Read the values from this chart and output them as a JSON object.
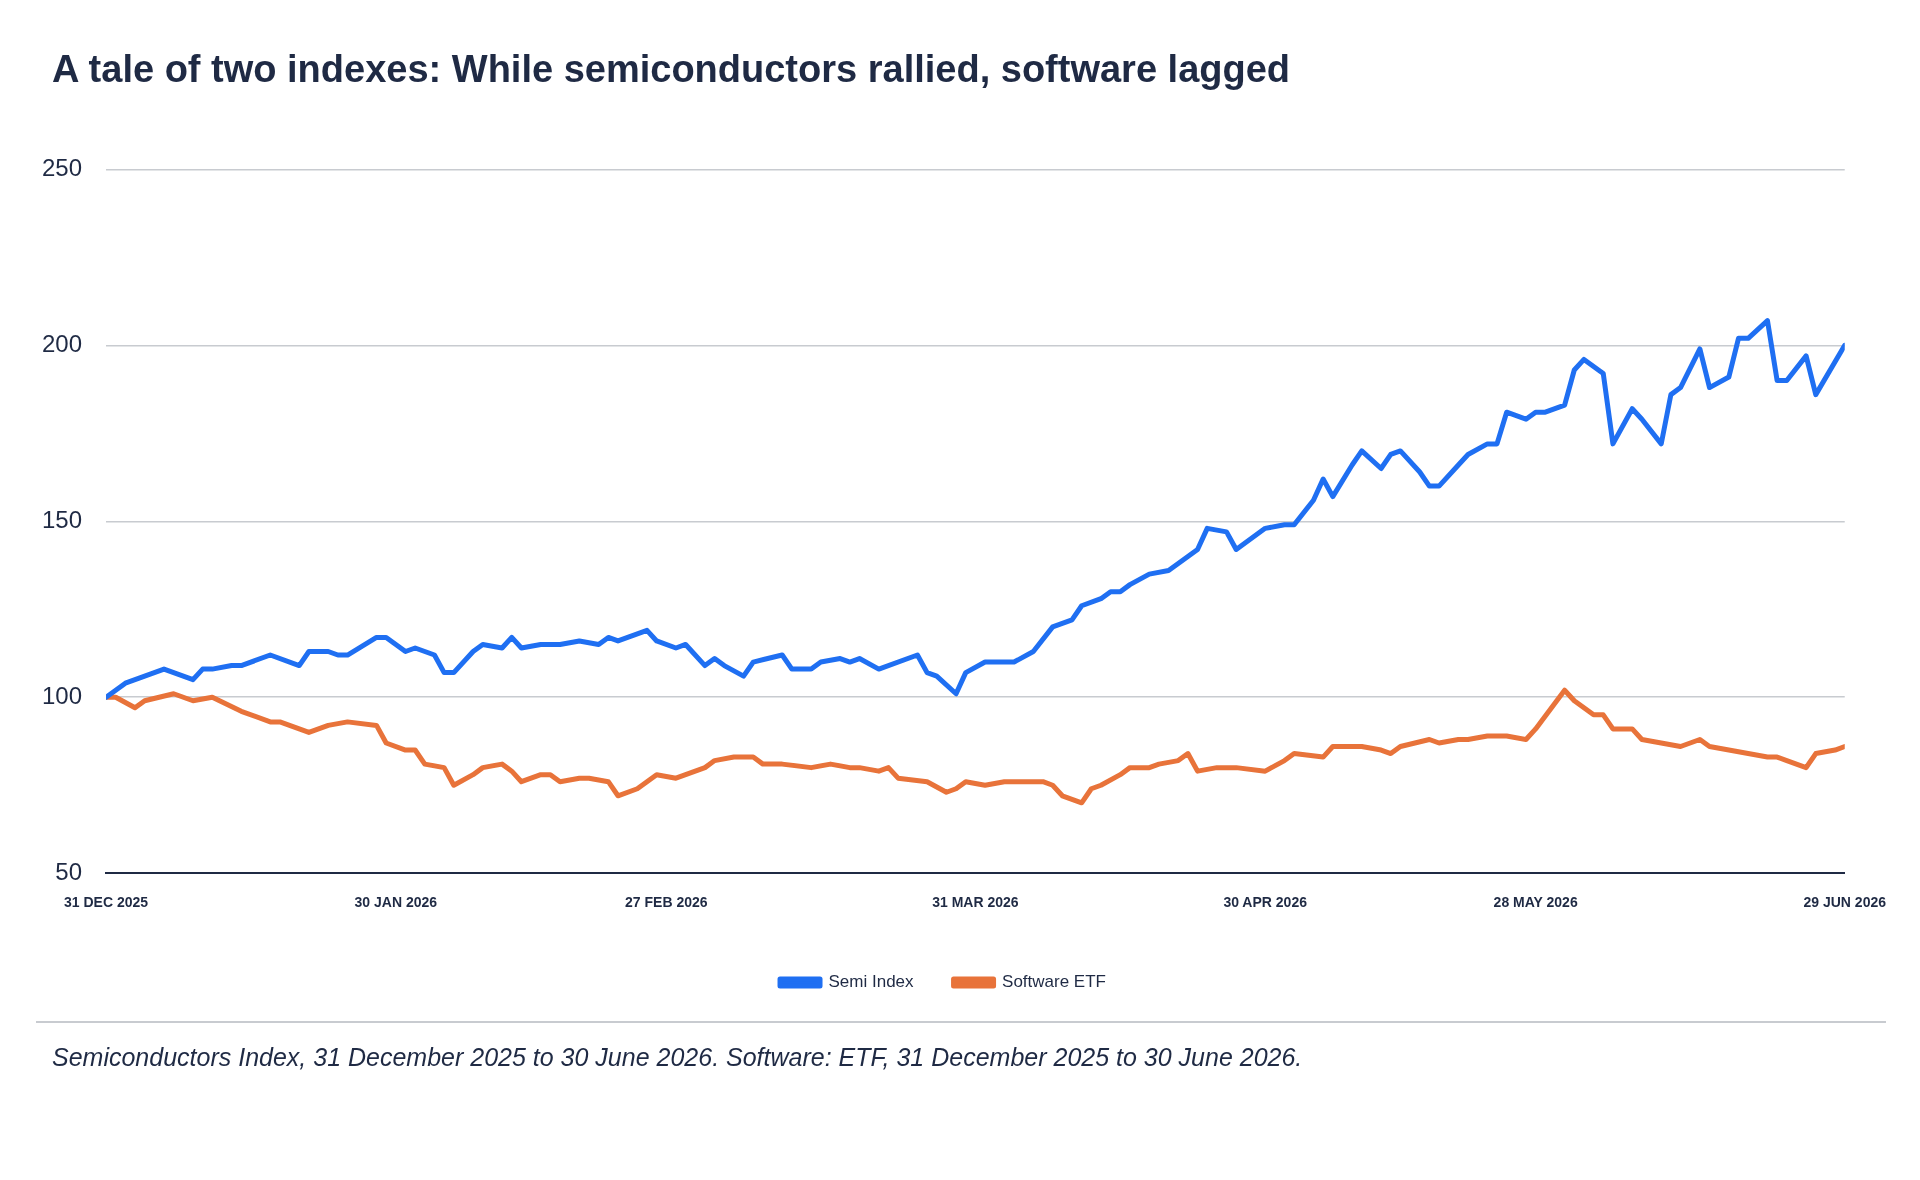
{
  "chart_data": {
    "type": "line",
    "title": "A tale of two indexes: While semiconductors rallied, software lagged",
    "xlim": [
      "2025-12-31",
      "2026-06-29"
    ],
    "xticks": [
      {
        "value": "2025-12-31",
        "label": "31 DEC 2025"
      },
      {
        "value": "2026-01-30",
        "label": "30 JAN 2026"
      },
      {
        "value": "2026-02-27",
        "label": "27 FEB 2026"
      },
      {
        "value": "2026-03-31",
        "label": "31 MAR 2026"
      },
      {
        "value": "2026-04-30",
        "label": "30 APR 2026"
      },
      {
        "value": "2026-05-28",
        "label": "28 MAY 2026"
      },
      {
        "value": "2026-06-29",
        "label": "29 JUN 2026"
      }
    ],
    "ylim": [
      50,
      250
    ],
    "yticks": [
      50,
      100,
      150,
      200,
      250
    ],
    "grid": "y",
    "legend": "bottom",
    "marker": "none",
    "line_style": "solid",
    "series": [
      {
        "name": "Semi Index",
        "color": "#1f6ff2",
        "x": [
          "2025-12-31",
          "2026-01-02",
          "2026-01-04",
          "2026-01-06",
          "2026-01-07",
          "2026-01-09",
          "2026-01-10",
          "2026-01-11",
          "2026-01-13",
          "2026-01-14",
          "2026-01-17",
          "2026-01-20",
          "2026-01-21",
          "2026-01-23",
          "2026-01-24",
          "2026-01-25",
          "2026-01-28",
          "2026-01-29",
          "2026-01-31",
          "2026-02-01",
          "2026-02-03",
          "2026-02-04",
          "2026-02-05",
          "2026-02-07",
          "2026-02-08",
          "2026-02-10",
          "2026-02-11",
          "2026-02-12",
          "2026-02-14",
          "2026-02-16",
          "2026-02-18",
          "2026-02-20",
          "2026-02-21",
          "2026-02-22",
          "2026-02-25",
          "2026-02-26",
          "2026-02-28",
          "2026-03-01",
          "2026-03-03",
          "2026-03-04",
          "2026-03-05",
          "2026-03-07",
          "2026-03-08",
          "2026-03-11",
          "2026-03-12",
          "2026-03-14",
          "2026-03-15",
          "2026-03-17",
          "2026-03-18",
          "2026-03-19",
          "2026-03-21",
          "2026-03-25",
          "2026-03-26",
          "2026-03-27",
          "2026-03-29",
          "2026-03-30",
          "2026-04-01",
          "2026-04-02",
          "2026-04-04",
          "2026-04-06",
          "2026-04-08",
          "2026-04-10",
          "2026-04-11",
          "2026-04-13",
          "2026-04-14",
          "2026-04-15",
          "2026-04-16",
          "2026-04-18",
          "2026-04-20",
          "2026-04-22",
          "2026-04-23",
          "2026-04-24",
          "2026-04-26",
          "2026-04-27",
          "2026-04-30",
          "2026-05-02",
          "2026-05-03",
          "2026-05-05",
          "2026-05-06",
          "2026-05-07",
          "2026-05-09",
          "2026-05-10",
          "2026-05-12",
          "2026-05-13",
          "2026-05-14",
          "2026-05-16",
          "2026-05-17",
          "2026-05-18",
          "2026-05-20",
          "2026-05-21",
          "2026-05-23",
          "2026-05-24",
          "2026-05-25",
          "2026-05-27",
          "2026-05-28",
          "2026-05-29",
          "2026-05-31",
          "2026-06-01",
          "2026-06-02",
          "2026-06-04",
          "2026-06-05",
          "2026-06-07",
          "2026-06-08",
          "2026-06-10",
          "2026-06-11",
          "2026-06-12",
          "2026-06-14",
          "2026-06-15",
          "2026-06-17",
          "2026-06-18",
          "2026-06-19",
          "2026-06-21",
          "2026-06-22",
          "2026-06-23",
          "2026-06-25",
          "2026-06-26",
          "2026-06-29"
        ],
        "values": [
          100,
          104,
          106,
          108,
          107,
          105,
          108,
          108,
          109,
          109,
          112,
          109,
          113,
          113,
          112,
          112,
          117,
          117,
          113,
          114,
          112,
          107,
          107,
          113,
          115,
          114,
          117,
          114,
          115,
          115,
          116,
          115,
          117,
          116,
          119,
          116,
          114,
          115,
          109,
          111,
          109,
          106,
          110,
          112,
          108,
          108,
          110,
          111,
          110,
          111,
          108,
          112,
          107,
          106,
          101,
          107,
          110,
          110,
          110,
          113,
          120,
          122,
          126,
          128,
          130,
          130,
          132,
          135,
          136,
          140,
          142,
          148,
          147,
          142,
          148,
          149,
          149,
          156,
          162,
          157,
          166,
          170,
          165,
          169,
          170,
          164,
          160,
          160,
          166,
          169,
          172,
          172,
          181,
          179,
          181,
          181,
          183,
          193,
          196,
          192,
          172,
          182,
          179,
          172,
          186,
          188,
          199,
          188,
          191,
          202,
          202,
          207,
          190,
          190,
          197,
          186,
          200
        ]
      },
      {
        "name": "Software ETF",
        "color": "#e8733a",
        "x": [
          "2025-12-31",
          "2026-01-01",
          "2026-01-03",
          "2026-01-04",
          "2026-01-07",
          "2026-01-09",
          "2026-01-11",
          "2026-01-14",
          "2026-01-17",
          "2026-01-18",
          "2026-01-20",
          "2026-01-21",
          "2026-01-23",
          "2026-01-25",
          "2026-01-28",
          "2026-01-29",
          "2026-01-31",
          "2026-02-01",
          "2026-02-02",
          "2026-02-04",
          "2026-02-05",
          "2026-02-07",
          "2026-02-08",
          "2026-02-10",
          "2026-02-11",
          "2026-02-12",
          "2026-02-14",
          "2026-02-15",
          "2026-02-16",
          "2026-02-18",
          "2026-02-19",
          "2026-02-21",
          "2026-02-22",
          "2026-02-24",
          "2026-02-25",
          "2026-02-26",
          "2026-02-28",
          "2026-03-03",
          "2026-03-04",
          "2026-03-06",
          "2026-03-08",
          "2026-03-09",
          "2026-03-11",
          "2026-03-14",
          "2026-03-16",
          "2026-03-18",
          "2026-03-19",
          "2026-03-21",
          "2026-03-22",
          "2026-03-23",
          "2026-03-26",
          "2026-03-28",
          "2026-03-29",
          "2026-03-30",
          "2026-04-01",
          "2026-04-03",
          "2026-04-05",
          "2026-04-07",
          "2026-04-08",
          "2026-04-09",
          "2026-04-11",
          "2026-04-12",
          "2026-04-13",
          "2026-04-15",
          "2026-04-16",
          "2026-04-18",
          "2026-04-19",
          "2026-04-21",
          "2026-04-22",
          "2026-04-23",
          "2026-04-25",
          "2026-04-27",
          "2026-04-30",
          "2026-05-02",
          "2026-05-03",
          "2026-05-06",
          "2026-05-07",
          "2026-05-09",
          "2026-05-10",
          "2026-05-12",
          "2026-05-13",
          "2026-05-14",
          "2026-05-17",
          "2026-05-18",
          "2026-05-20",
          "2026-05-21",
          "2026-05-23",
          "2026-05-25",
          "2026-05-27",
          "2026-05-28",
          "2026-05-31",
          "2026-06-01",
          "2026-06-03",
          "2026-06-04",
          "2026-06-05",
          "2026-06-07",
          "2026-06-08",
          "2026-06-10",
          "2026-06-12",
          "2026-06-14",
          "2026-06-15",
          "2026-06-17",
          "2026-06-19",
          "2026-06-21",
          "2026-06-22",
          "2026-06-23",
          "2026-06-25",
          "2026-06-26",
          "2026-06-28",
          "2026-06-29"
        ],
        "values": [
          100,
          100,
          97,
          99,
          101,
          99,
          100,
          96,
          93,
          93,
          91,
          90,
          92,
          93,
          92,
          87,
          85,
          85,
          81,
          80,
          75,
          78,
          80,
          81,
          79,
          76,
          78,
          78,
          76,
          77,
          77,
          76,
          72,
          74,
          76,
          78,
          77,
          80,
          82,
          83,
          83,
          81,
          81,
          80,
          81,
          80,
          80,
          79,
          80,
          77,
          76,
          73,
          74,
          76,
          75,
          76,
          76,
          76,
          75,
          72,
          70,
          74,
          75,
          78,
          80,
          80,
          81,
          82,
          84,
          79,
          80,
          80,
          79,
          82,
          84,
          83,
          86,
          86,
          86,
          85,
          84,
          86,
          88,
          87,
          88,
          88,
          89,
          89,
          88,
          91,
          102,
          99,
          95,
          95,
          91,
          91,
          88,
          87,
          86,
          88,
          86,
          85,
          84,
          83,
          83,
          82,
          80,
          84,
          85,
          86
        ]
      }
    ],
    "annotations": [
      "Semiconductors Index, 31 December 2025 to 30 June 2026. Software: ETF, 31 December 2025 to 30 June 2026."
    ]
  }
}
